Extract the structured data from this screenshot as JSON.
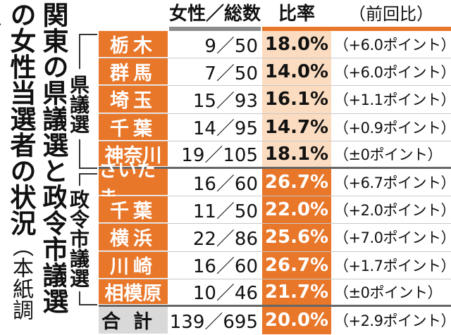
{
  "title": {
    "main": "関東の県議選と政令市議選の女性当選者の状況",
    "sub": "（本紙調べ）"
  },
  "headers": {
    "count": "女性／総数",
    "rate": "比率",
    "prev": "（前回比）"
  },
  "groups": {
    "prefectural": "県議選",
    "city": "政令市議選"
  },
  "colors": {
    "accent": "#e8772a",
    "pale": "#fbdcc0",
    "header_bar_count": "#8c8c8c",
    "total_bg": "#d9d9d9"
  },
  "rows": [
    {
      "name": "栃木",
      "count": "9／50",
      "rate": "18.0%",
      "prev": "（+6.0ポイント）"
    },
    {
      "name": "群馬",
      "count": "7／50",
      "rate": "14.0%",
      "prev": "（+6.0ポイント）"
    },
    {
      "name": "埼玉",
      "count": "15／93",
      "rate": "16.1%",
      "prev": "（+1.1ポイント）"
    },
    {
      "name": "千葉",
      "count": "14／95",
      "rate": "14.7%",
      "prev": "（+0.9ポイント）"
    },
    {
      "name": "神奈川",
      "count": "19／105",
      "rate": "18.1%",
      "prev": "（±0ポイント）"
    },
    {
      "name": "さいたま",
      "count": "16／60",
      "rate": "26.7%",
      "prev": "（+6.7ポイント）"
    },
    {
      "name": "千葉",
      "count": "11／50",
      "rate": "22.0%",
      "prev": "（+2.0ポイント）"
    },
    {
      "name": "横浜",
      "count": "22／86",
      "rate": "25.6%",
      "prev": "（+7.0ポイント）"
    },
    {
      "name": "川崎",
      "count": "16／60",
      "rate": "26.7%",
      "prev": "（+1.7ポイント）"
    },
    {
      "name": "相模原",
      "count": "10／46",
      "rate": "21.7%",
      "prev": "（±0ポイント）"
    },
    {
      "name": "合計",
      "count": "139／695",
      "rate": "20.0%",
      "prev": "（+2.9ポイント）"
    }
  ]
}
